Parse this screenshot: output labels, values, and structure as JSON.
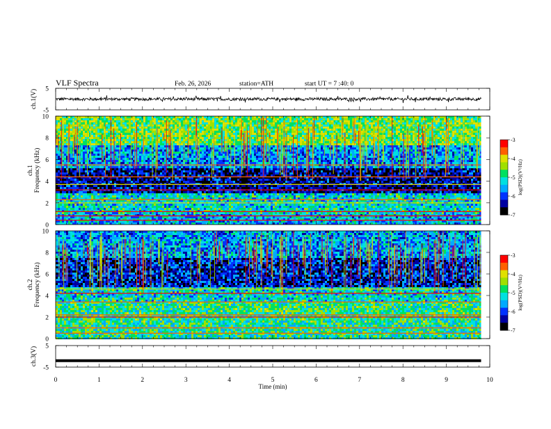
{
  "header": {
    "title": "VLF Spectra",
    "date": "Feb. 26, 2026",
    "station": "station=ATH",
    "start": "start UT =  7 :40: 0"
  },
  "chart_data": [
    {
      "type": "line",
      "panel": "ch1-waveform",
      "ylabel": "ch.1(V)",
      "ylim": [
        -5,
        5
      ],
      "yticks": [
        "5",
        "-5"
      ],
      "xlim": [
        0,
        10
      ],
      "description_values": "noisy waveform centered near 0 V, amplitude roughly ±1 V with spikes to ±2 V"
    },
    {
      "type": "heatmap",
      "panel": "ch1-spectrogram",
      "ylabel": "ch.1\nFrequency (kHz)",
      "ylim": [
        0,
        10
      ],
      "yticks": [
        "0",
        "2",
        "4",
        "6",
        "8",
        "10"
      ],
      "xlim": [
        0,
        10
      ],
      "data_end_min": 9.8,
      "colorbar": {
        "label": "log(PSD)(V²/Hz)",
        "range": [
          -7,
          -3
        ],
        "ticks": [
          "-3",
          "-4",
          "-5",
          "-6",
          "-7"
        ]
      },
      "bands": [
        {
          "f_from": 0,
          "f_to": 1.0,
          "level": -5.5
        },
        {
          "f_from": 1.0,
          "f_to": 3.0,
          "level": -5.2
        },
        {
          "f_from": 3.0,
          "f_to": 5.3,
          "level": -6.4
        },
        {
          "f_from": 5.3,
          "f_to": 7.5,
          "level": -5.6
        },
        {
          "f_from": 7.5,
          "f_to": 10,
          "level": -4.6
        }
      ],
      "lines_khz": [
        0.4,
        0.8,
        1.2,
        2.0,
        2.3,
        3.2,
        3.7,
        4.4,
        5.5
      ]
    },
    {
      "type": "heatmap",
      "panel": "ch2-spectrogram",
      "ylabel": "ch.2\nFrequency (kHz)",
      "ylim": [
        0,
        10
      ],
      "yticks": [
        "0",
        "2",
        "4",
        "6",
        "8",
        "10"
      ],
      "xlim": [
        0,
        10
      ],
      "data_end_min": 9.8,
      "colorbar": {
        "label": "log(PSD)(V²/Hz)",
        "range": [
          -7,
          -3
        ],
        "ticks": [
          "-3",
          "-4",
          "-5",
          "-6",
          "-7"
        ]
      },
      "bands": [
        {
          "f_from": 0,
          "f_to": 1.5,
          "level": -5.0
        },
        {
          "f_from": 1.5,
          "f_to": 3.5,
          "level": -4.9
        },
        {
          "f_from": 3.5,
          "f_to": 4.8,
          "level": -5.2
        },
        {
          "f_from": 4.8,
          "f_to": 7.5,
          "level": -6.2
        },
        {
          "f_from": 7.5,
          "f_to": 10,
          "level": -5.6
        }
      ],
      "lines_khz": [
        0.5,
        1.0,
        2.0,
        2.2,
        3.4,
        4.2,
        4.6
      ]
    },
    {
      "type": "line",
      "panel": "ch3-waveform",
      "ylabel": "ch.3(V)",
      "ylim": [
        -5,
        5
      ],
      "yticks": [
        "5",
        "-5"
      ],
      "xlim": [
        0,
        10
      ],
      "xlabel": "Time (min)",
      "xticks": [
        "0",
        "1",
        "2",
        "3",
        "4",
        "5",
        "6",
        "7",
        "8",
        "9",
        "10"
      ],
      "description_values": "flat thick trace at about -2 V"
    }
  ],
  "colors": {
    "scale": [
      "#000000",
      "#0000a0",
      "#0033ff",
      "#00aaff",
      "#00e0e0",
      "#00e060",
      "#a0e000",
      "#e0e000",
      "#ff6000",
      "#ff0000",
      "#ffffff"
    ]
  }
}
